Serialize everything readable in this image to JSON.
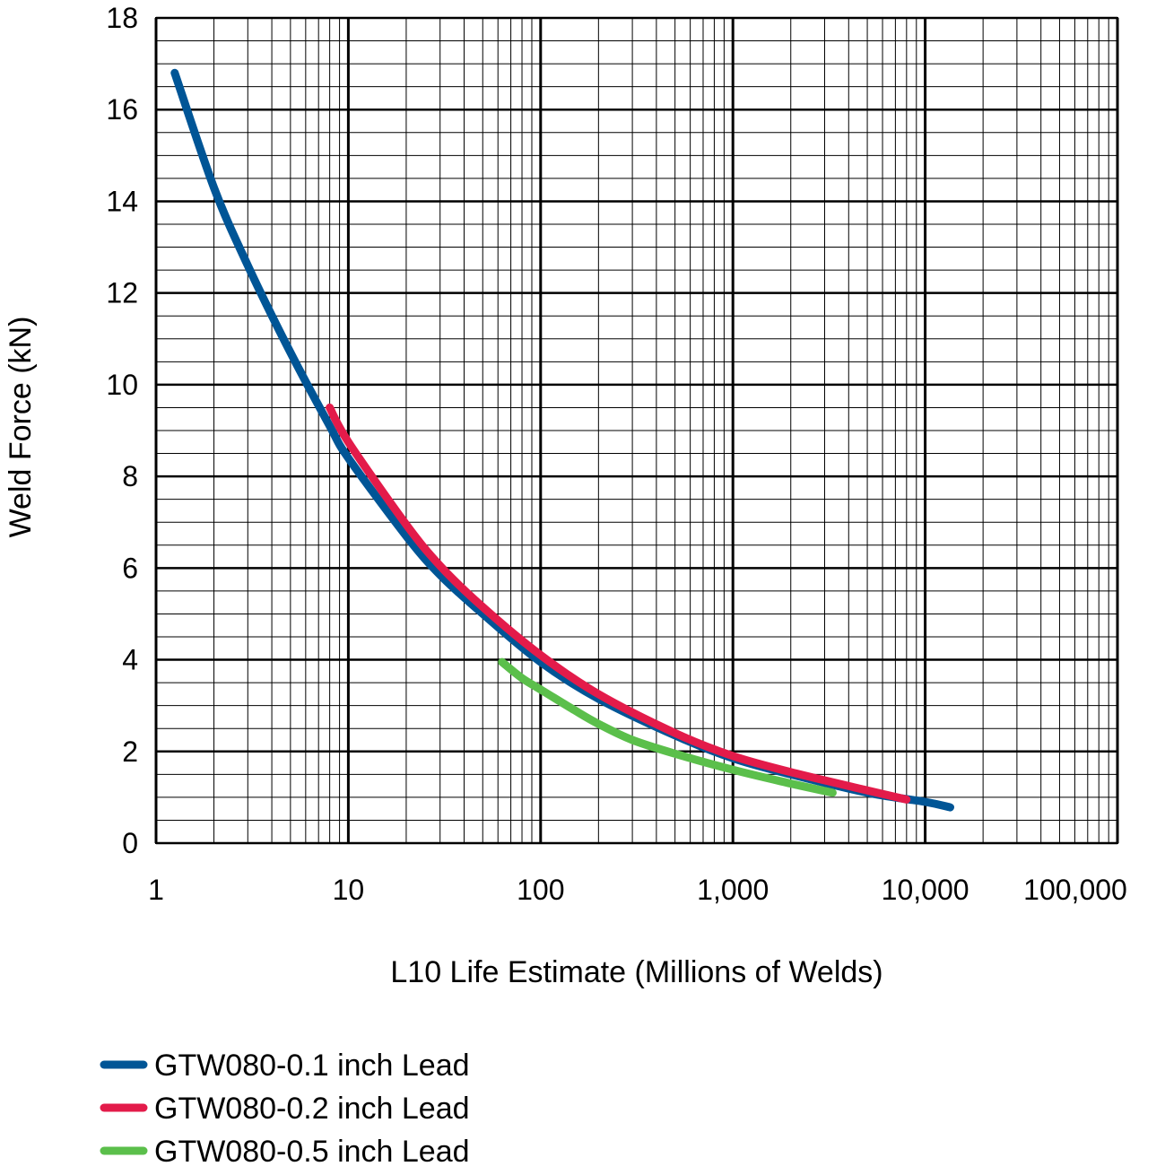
{
  "chart_data": {
    "type": "line",
    "title": "",
    "xlabel": "L10 Life Estimate (Millions of Welds)",
    "ylabel": "Weld Force (kN)",
    "x_scale": "log",
    "xlim": [
      1,
      100000
    ],
    "ylim": [
      0,
      18
    ],
    "x_ticks": [
      1,
      10,
      100,
      1000,
      10000,
      100000
    ],
    "x_tick_labels": [
      "1",
      "10",
      "100",
      "1,000",
      "10,000",
      "100,000"
    ],
    "y_ticks": [
      0,
      2,
      4,
      6,
      8,
      10,
      12,
      14,
      16,
      18
    ],
    "y_tick_labels": [
      "0",
      "2",
      "4",
      "6",
      "8",
      "10",
      "12",
      "14",
      "16",
      "18"
    ],
    "grid": "major and minor",
    "legend_position": "bottom-left, below chart",
    "series": [
      {
        "name": "GTW080-0.1 inch Lead",
        "color": "#005596",
        "x": [
          1.25,
          2,
          3,
          5,
          8,
          10,
          20,
          30,
          50,
          100,
          200,
          500,
          1000,
          2000,
          5000,
          10000,
          13500
        ],
        "y": [
          16.8,
          14.3,
          12.6,
          10.7,
          9.1,
          8.4,
          6.7,
          5.85,
          5.0,
          3.95,
          3.15,
          2.35,
          1.85,
          1.5,
          1.1,
          0.9,
          0.78
        ]
      },
      {
        "name": "GTW080-0.2 inch Lead",
        "color": "#E31B4A",
        "x": [
          8,
          10,
          20,
          30,
          50,
          100,
          200,
          500,
          1000,
          2000,
          5000,
          8000
        ],
        "y": [
          9.5,
          8.75,
          6.95,
          6.05,
          5.15,
          4.1,
          3.25,
          2.4,
          1.9,
          1.55,
          1.15,
          0.95
        ]
      },
      {
        "name": "GTW080-0.5 inch Lead",
        "color": "#5BBF4B",
        "x": [
          63,
          80,
          100,
          150,
          200,
          300,
          500,
          1000,
          2000,
          3300
        ],
        "y": [
          3.95,
          3.6,
          3.35,
          2.9,
          2.6,
          2.25,
          1.95,
          1.6,
          1.3,
          1.1
        ]
      }
    ]
  }
}
